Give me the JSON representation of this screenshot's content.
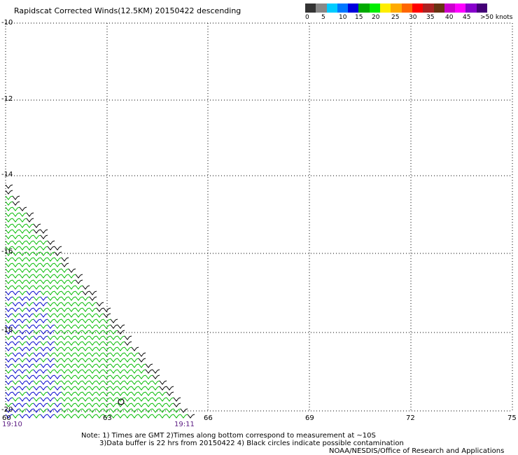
{
  "title": "Rapidscat Corrected Winds(12.5KM) 20150422 descending",
  "colorbar": {
    "colors": [
      "#333333",
      "#888888",
      "#00ccff",
      "#0077ff",
      "#0000dd",
      "#00aa00",
      "#00ee00",
      "#ffee00",
      "#ffaa00",
      "#ff6600",
      "#ff0000",
      "#aa2222",
      "#663311",
      "#cc00cc",
      "#ff00ff",
      "#8800cc",
      "#440077"
    ],
    "labels": [
      "0",
      "5",
      "10",
      "15",
      "20",
      "25",
      "30",
      "35",
      "40",
      "45",
      ">50 knots"
    ]
  },
  "axes": {
    "lat_labels": [
      "-10",
      "-12",
      "-14",
      "-16",
      "-18",
      "-20"
    ],
    "lon_labels": [
      "60",
      "63",
      "66",
      "69",
      "72",
      "75"
    ]
  },
  "times": {
    "left": "19:10",
    "right": "19:11"
  },
  "notes": {
    "line1": "Note: 1) Times are GMT 2)Times along bottom correspond to measurement at ~10S",
    "line2": "3)Data buffer is 22 hrs from 20150422 4) Black circles indicate possible contamination",
    "credit": "NOAA/NESDIS/Office of Research and Applications"
  },
  "wind_colors": {
    "slow": "#0000cc",
    "mid": "#00bb00",
    "edge": "#000000"
  }
}
